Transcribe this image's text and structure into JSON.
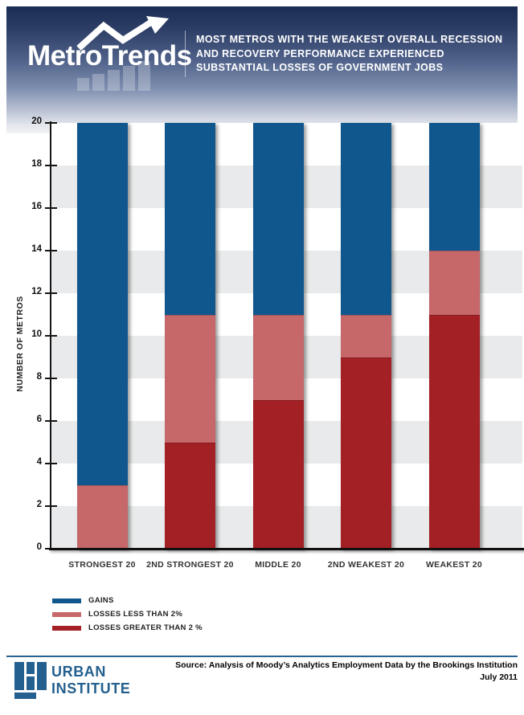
{
  "header": {
    "logo_text": "MetroTrends",
    "title_lines": [
      "MOST METROS WITH THE WEAKEST OVERALL RECESSION",
      "AND RECOVERY PERFORMANCE EXPERIENCED",
      "SUBSTANTIAL LOSSES OF GOVERNMENT JOBS"
    ]
  },
  "chart_data": {
    "type": "bar",
    "stacked": true,
    "title": "Most metros with the weakest overall recession and recovery performance experienced substantial losses of government jobs",
    "ylabel": "NUMBER OF METROS",
    "xlabel": "",
    "ylim": [
      0,
      20
    ],
    "ytick_step": 2,
    "grid": "alternating horizontal bands every 2 units (white / light gray)",
    "legend_position": "bottom-left",
    "categories": [
      "STRONGEST 20",
      "2ND STRONGEST 20",
      "MIDDLE 20",
      "2ND WEAKEST 20",
      "WEAKEST 20"
    ],
    "series": [
      {
        "name": "GAINS",
        "color": "#10578D",
        "values": [
          17,
          9,
          9,
          9,
          6
        ]
      },
      {
        "name": "LOSSES LESS THAN 2%",
        "color": "#C6676A",
        "values": [
          3,
          6,
          4,
          2,
          3
        ]
      },
      {
        "name": "LOSSES GREATER THAN 2 %",
        "color": "#A32025",
        "values": [
          0,
          5,
          7,
          9,
          11
        ]
      }
    ]
  },
  "footer": {
    "org_name_line1": "URBAN",
    "org_name_line2": "INSTITUTE",
    "source_line": "Source: Analysis of Moody’s Analytics Employment Data by the Brookings Institution",
    "date_line": "July 2011"
  },
  "colors": {
    "gains_blue": "#10578D",
    "losses_light_red": "#C6676A",
    "losses_dark_red": "#A32025",
    "band_gray": "#E8EAEB",
    "footer_blue": "#24608F",
    "header_gradient_top": "#1B2C52",
    "header_gradient_mid": "#66779C"
  }
}
